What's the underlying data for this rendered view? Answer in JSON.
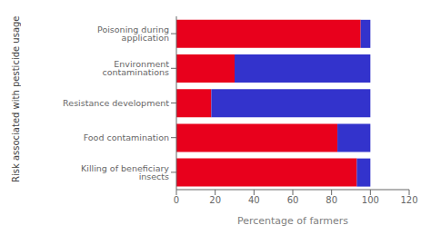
{
  "chart_data": {
    "type": "bar",
    "orientation": "horizontal",
    "stacked": true,
    "grid": false,
    "categories": [
      "Poisoning during application",
      "Environment contaminations",
      "Resistance development",
      "Food contamination",
      "Killing of beneficiary insects"
    ],
    "series": [
      {
        "color": "#e8001c",
        "values": [
          95,
          30,
          18,
          83,
          93
        ]
      },
      {
        "color": "#3333cc",
        "values": [
          5,
          70,
          82,
          17,
          7
        ]
      }
    ],
    "xlabel": "Percentage of farmers",
    "ylabel": "Risk associated with pesticide usage",
    "xlim": [
      0,
      120
    ],
    "xticks": [
      0,
      20,
      40,
      60,
      80,
      100,
      120
    ]
  }
}
